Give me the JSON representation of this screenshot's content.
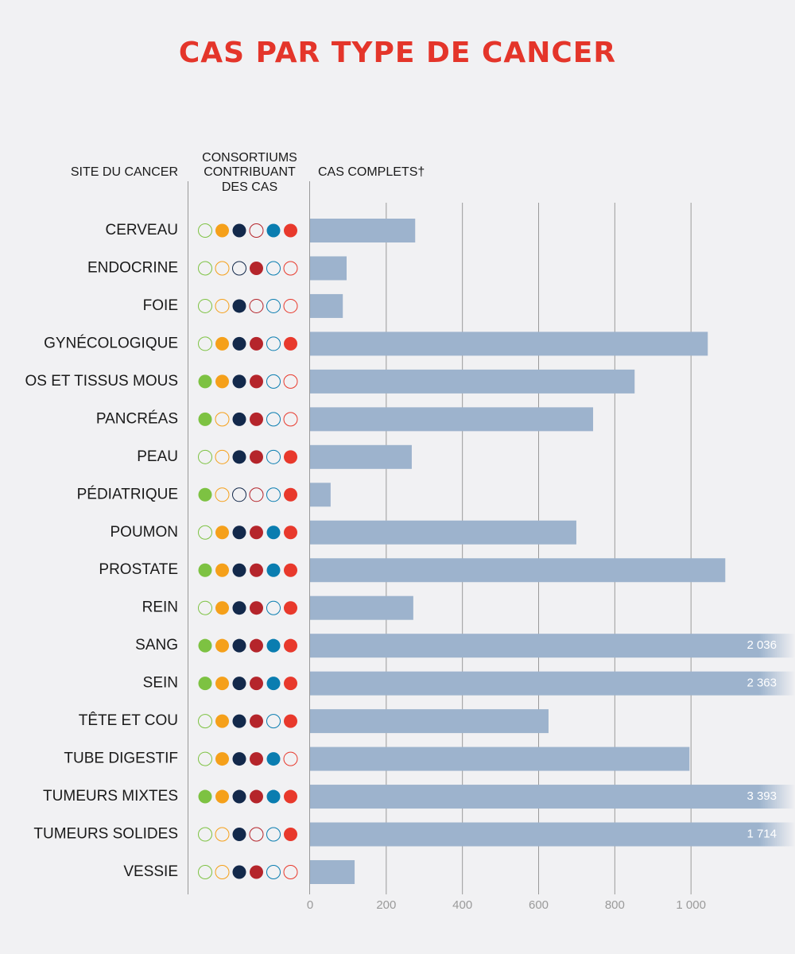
{
  "chart_data": {
    "type": "bar",
    "orientation": "horizontal",
    "title": "CAS PAR TYPE DE CANCER",
    "category_header": "SITE DU CANCER",
    "consortia_header": [
      "CONSORTIUMS",
      "CONTRIBUANT",
      "DES CAS"
    ],
    "x_label": "CAS COMPLETS†",
    "categories": [
      "CERVEAU",
      "ENDOCRINE",
      "FOIE",
      "GYNÉCOLOGIQUE",
      "OS ET TISSUS MOUS",
      "PANCRÉAS",
      "PEAU",
      "PÉDIATRIQUE",
      "POUMON",
      "PROSTATE",
      "REIN",
      "SANG",
      "SEIN",
      "TÊTE ET COU",
      "TUBE DIGESTIF",
      "TUMEURS MIXTES",
      "TUMEURS SOLIDES",
      "VESSIE"
    ],
    "values": [
      276,
      96,
      86,
      1044,
      852,
      743,
      267,
      54,
      699,
      1090,
      271,
      2036,
      2363,
      626,
      996,
      3393,
      1714,
      117
    ],
    "value_labels": [
      null,
      null,
      null,
      null,
      null,
      null,
      null,
      null,
      null,
      null,
      null,
      "2 036",
      "2 363",
      null,
      null,
      "3 393",
      "1 714",
      null
    ],
    "color": "#9db3cd",
    "consortium_colors": [
      "#7dc242",
      "#f5a01a",
      "#13294b",
      "#b5252b",
      "#0a7db0",
      "#e8392c"
    ],
    "consortia": [
      [
        0,
        1,
        1,
        0,
        1,
        1
      ],
      [
        0,
        0,
        0,
        1,
        0,
        0
      ],
      [
        0,
        0,
        1,
        0,
        0,
        0
      ],
      [
        0,
        1,
        1,
        1,
        0,
        1
      ],
      [
        1,
        1,
        1,
        1,
        0,
        0
      ],
      [
        1,
        0,
        1,
        1,
        0,
        0
      ],
      [
        0,
        0,
        1,
        1,
        0,
        1
      ],
      [
        1,
        0,
        0,
        0,
        0,
        1
      ],
      [
        0,
        1,
        1,
        1,
        1,
        1
      ],
      [
        1,
        1,
        1,
        1,
        1,
        1
      ],
      [
        0,
        1,
        1,
        1,
        0,
        1
      ],
      [
        1,
        1,
        1,
        1,
        1,
        1
      ],
      [
        1,
        1,
        1,
        1,
        1,
        1
      ],
      [
        0,
        1,
        1,
        1,
        0,
        1
      ],
      [
        0,
        1,
        1,
        1,
        1,
        0
      ],
      [
        1,
        1,
        1,
        1,
        1,
        1
      ],
      [
        0,
        0,
        1,
        0,
        0,
        1
      ],
      [
        0,
        0,
        1,
        1,
        0,
        0
      ]
    ],
    "xlim": [
      0,
      1273
    ],
    "xticks": [
      0,
      200,
      400,
      600,
      800,
      {
        "value": 1000,
        "label": "1 000"
      }
    ],
    "grid": true
  }
}
